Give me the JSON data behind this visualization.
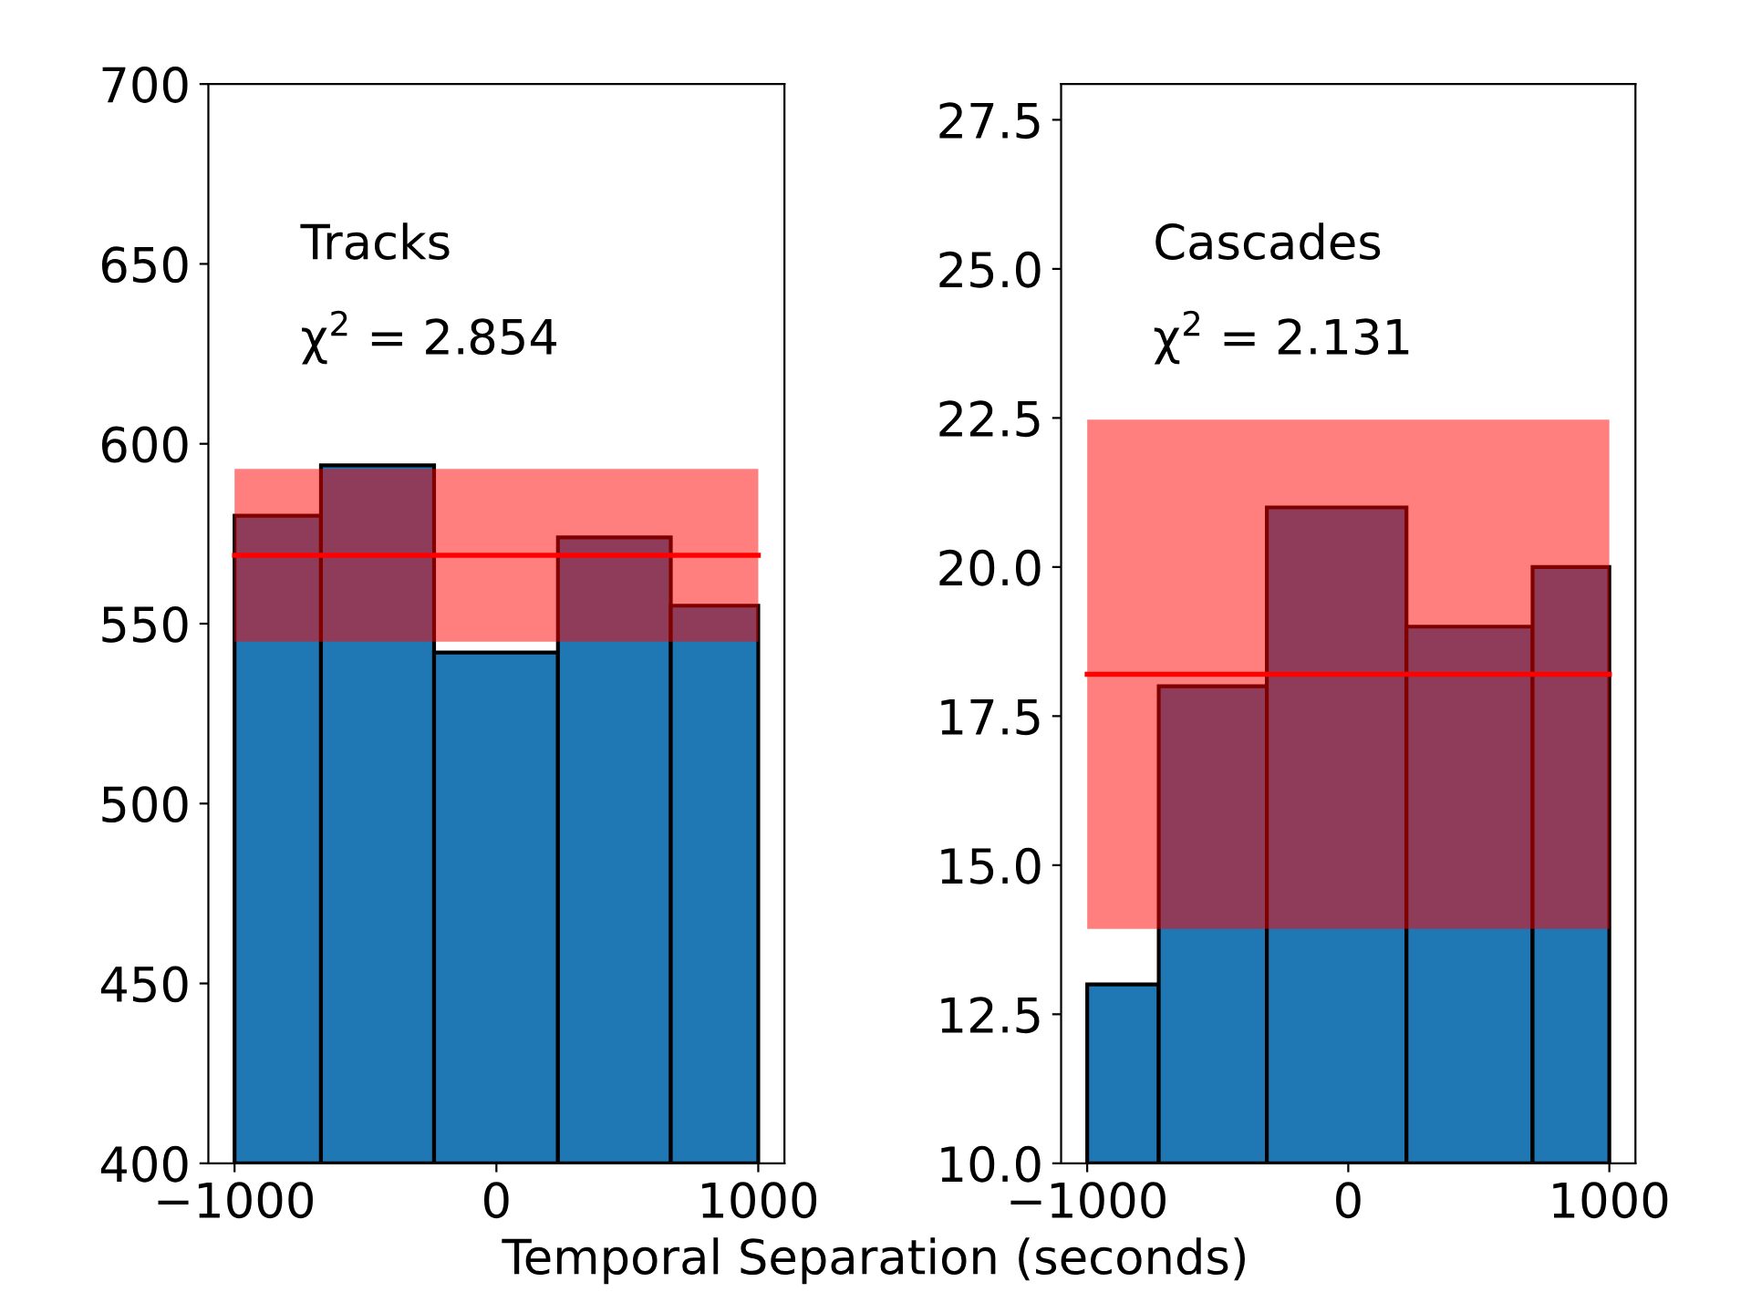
{
  "chart_data": [
    {
      "type": "histogram",
      "bins": [
        -1000,
        -670,
        -238,
        235,
        666,
        1000
      ],
      "values": [
        580,
        594,
        542,
        574,
        555
      ],
      "color": "#1f77b4",
      "xlim": [
        -1100,
        1100
      ],
      "ylim": [
        400,
        700
      ],
      "xticks": [
        {
          "value": -1000,
          "label": "−1000"
        },
        0,
        1000
      ],
      "yticks": [
        400,
        450,
        500,
        550,
        600,
        650,
        700
      ],
      "xlabel": "Temporal Separation (seconds)",
      "annotations": [
        "Tracks",
        "χ$^{2}$ = 2.854"
      ],
      "ref_lines": [
        {
          "axis": "y",
          "value": 569,
          "color": "#ff0000"
        }
      ],
      "bands": [
        {
          "axis": "y",
          "from": 545,
          "to": 593,
          "color": "#ff0000"
        }
      ],
      "grid": false,
      "legend": false
    },
    {
      "type": "histogram",
      "bins": [
        -1000,
        -726,
        -312,
        223,
        706,
        1000
      ],
      "values": [
        13,
        18,
        21,
        19,
        20
      ],
      "color": "#1f77b4",
      "xlim": [
        -1100,
        1100
      ],
      "ylim": [
        10,
        28.1
      ],
      "xticks": [
        {
          "value": -1000,
          "label": "−1000"
        },
        0,
        1000
      ],
      "yticks": [
        {
          "value": 10,
          "label": "10.0"
        },
        12.5,
        {
          "value": 15,
          "label": "15.0"
        },
        17.5,
        {
          "value": 20,
          "label": "20.0"
        },
        22.5,
        {
          "value": 25,
          "label": "25.0"
        },
        27.5
      ],
      "annotations": [
        "Cascades",
        "χ$^{2}$ = 2.131"
      ],
      "ref_lines": [
        {
          "axis": "y",
          "value": 18.2,
          "color": "#ff0000"
        }
      ],
      "bands": [
        {
          "axis": "y",
          "from": 13.93,
          "to": 22.47,
          "color": "#ff0000"
        }
      ],
      "grid": false,
      "legend": false
    }
  ]
}
